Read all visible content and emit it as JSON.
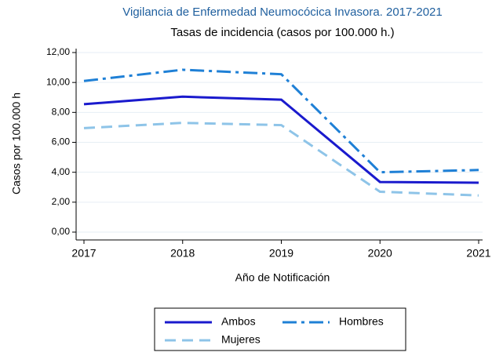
{
  "chart_data": {
    "type": "line",
    "title": "Vigilancia de Enfermedad Neumocócica Invasora. 2017-2021",
    "subtitle": "Tasas de incidencia (casos por 100.000 h.)",
    "x_label": "Año de Notificación",
    "y_label": "Casos por 100.000 h",
    "x": [
      2017,
      2018,
      2019,
      2020,
      2021
    ],
    "xlim": [
      2017,
      2021
    ],
    "xticks": [
      2017,
      2018,
      2019,
      2020,
      2021
    ],
    "ylim": [
      0,
      12
    ],
    "yticks": [
      {
        "value": 0,
        "label": "0,00"
      },
      {
        "value": 2,
        "label": "2,00"
      },
      {
        "value": 4,
        "label": "4,00"
      },
      {
        "value": 6,
        "label": "6,00"
      },
      {
        "value": 8,
        "label": "8,00"
      },
      {
        "value": 10,
        "label": "10,00"
      },
      {
        "value": 12,
        "label": "12,00"
      }
    ],
    "grid": true,
    "legend_position": "bottom",
    "series": [
      {
        "name": "Ambos",
        "color": "#1a1acd",
        "dash": "solid",
        "values": [
          8.55,
          9.05,
          8.85,
          3.35,
          3.3
        ]
      },
      {
        "name": "Hombres",
        "color": "#1f80d6",
        "dash": "dashdot",
        "values": [
          10.1,
          10.85,
          10.55,
          4.0,
          4.15
        ]
      },
      {
        "name": "Mujeres",
        "color": "#8ec4e8",
        "dash": "dash",
        "values": [
          6.95,
          7.3,
          7.15,
          2.7,
          2.45
        ]
      }
    ]
  }
}
